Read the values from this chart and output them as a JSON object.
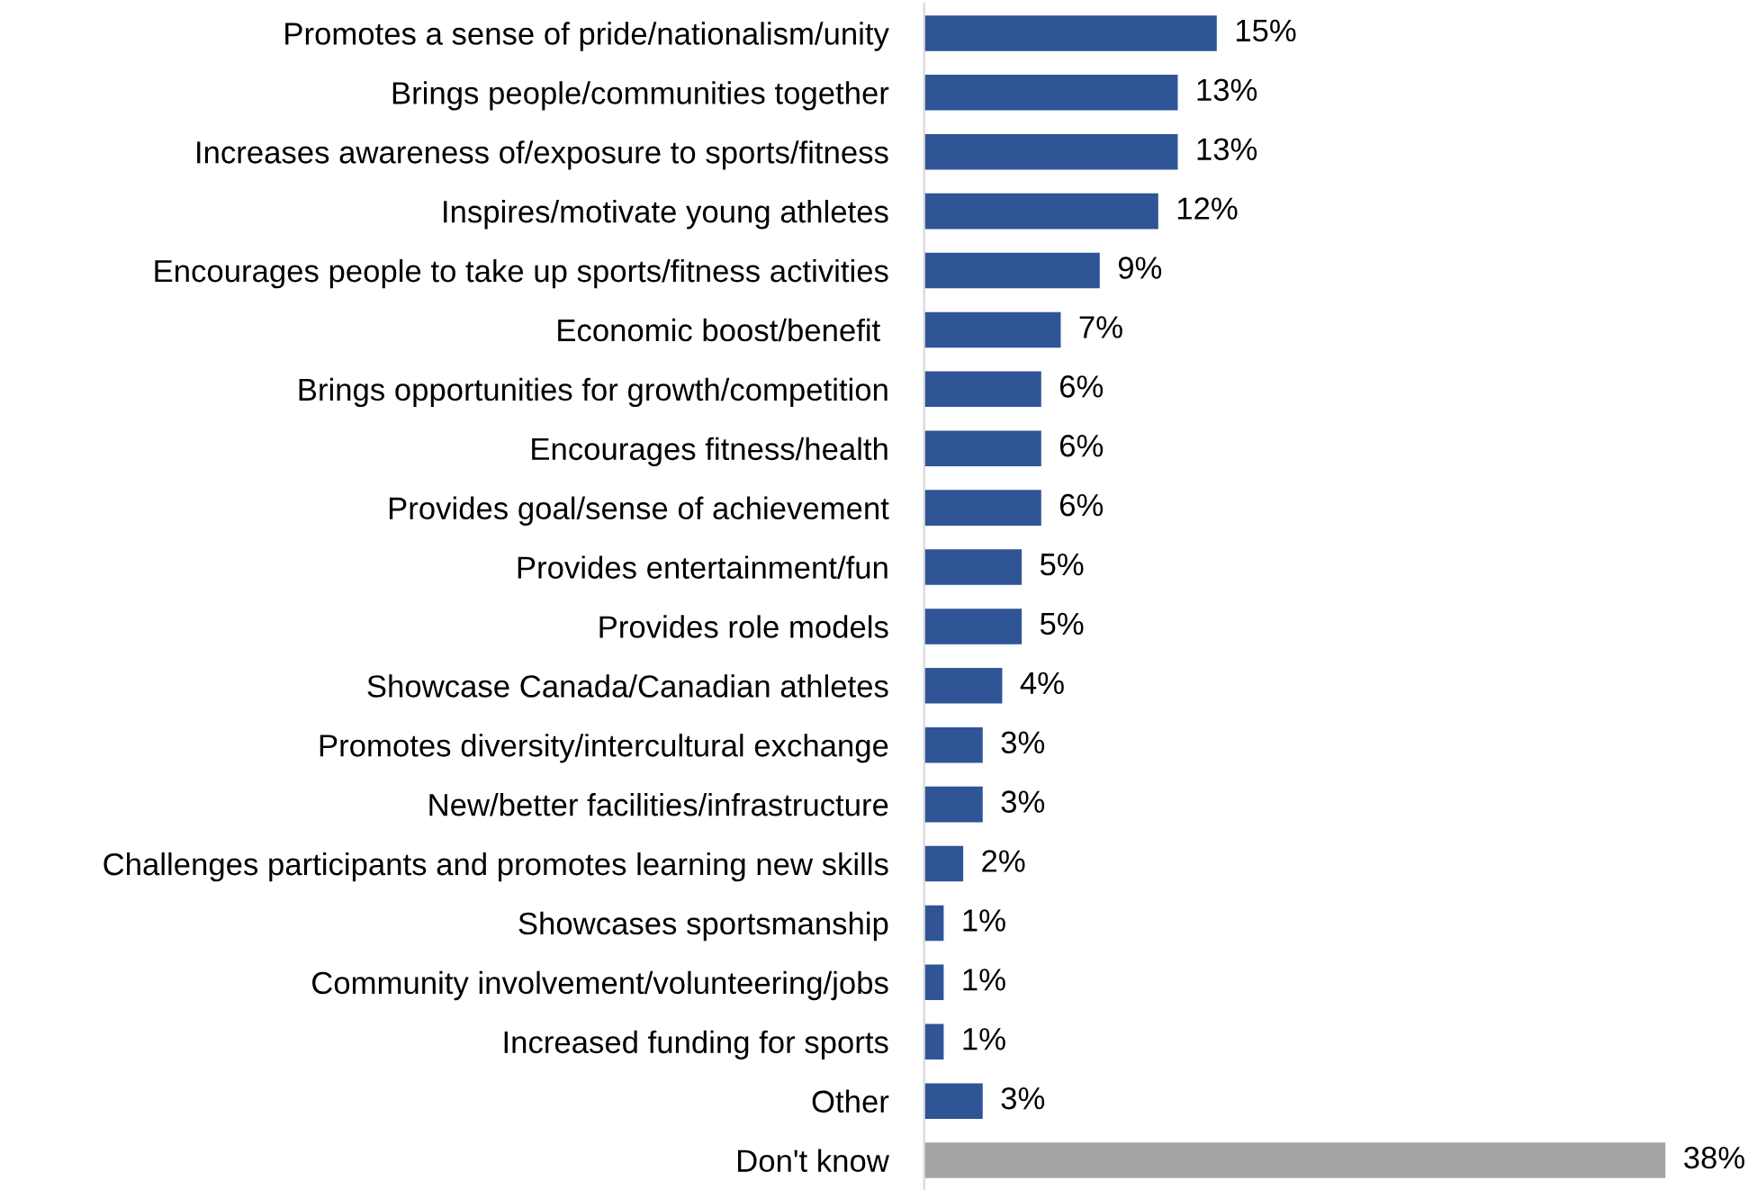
{
  "chart_data": {
    "type": "bar",
    "orientation": "horizontal",
    "data_labels": true,
    "value_labels": [
      "15%",
      "13%",
      "13%",
      "12%",
      "9%",
      "7%",
      "6%",
      "6%",
      "6%",
      "5%",
      "5%",
      "4%",
      "3%",
      "3%",
      "2%",
      "1%",
      "1%",
      "1%",
      "3%",
      "38%"
    ],
    "categories": [
      "Promotes a sense of pride/nationalism/unity",
      "Brings people/communities together",
      "Increases awareness of/exposure to sports/fitness",
      "Inspires/motivate young athletes",
      "Encourages people to take up sports/fitness activities",
      "Economic boost/benefit ",
      "Brings opportunities for growth/competition",
      "Encourages fitness/health",
      "Provides goal/sense of achievement",
      "Provides entertainment/fun",
      "Provides role models",
      "Showcase Canada/Canadian athletes",
      "Promotes diversity/intercultural exchange",
      "New/better facilities/infrastructure",
      "Challenges participants and promotes learning new skills",
      "Showcases sportsmanship",
      "Community involvement/volunteering/jobs",
      "Increased funding for sports",
      "Other",
      "Don't know"
    ],
    "values": [
      15,
      13,
      13,
      12,
      9,
      7,
      6,
      6,
      6,
      5,
      5,
      4,
      3,
      3,
      2,
      1,
      1,
      1,
      3,
      38
    ],
    "colors": [
      "#2f5597",
      "#2f5597",
      "#2f5597",
      "#2f5597",
      "#2f5597",
      "#2f5597",
      "#2f5597",
      "#2f5597",
      "#2f5597",
      "#2f5597",
      "#2f5597",
      "#2f5597",
      "#2f5597",
      "#2f5597",
      "#2f5597",
      "#2f5597",
      "#2f5597",
      "#2f5597",
      "#2f5597",
      "#a5a5a5"
    ],
    "grid": false,
    "legend": false
  }
}
